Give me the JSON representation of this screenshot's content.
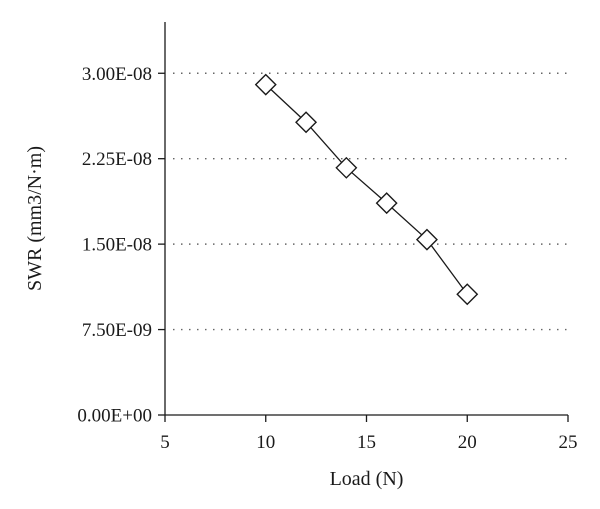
{
  "chart_data": {
    "type": "line",
    "title": "",
    "xlabel": "Load (N)",
    "ylabel": "SWR (mm3/N·m)",
    "xlim": [
      5,
      25
    ],
    "ylim": [
      0,
      3.45e-08
    ],
    "x_ticks": [
      5,
      10,
      15,
      20,
      25
    ],
    "x_tick_labels": [
      "5",
      "10",
      "15",
      "20",
      "25"
    ],
    "y_ticks": [
      0,
      7.5e-09,
      1.5e-08,
      2.25e-08,
      3e-08
    ],
    "y_tick_labels": [
      "0.00E+00",
      "7.50E-09",
      "1.50E-08",
      "2.25E-08",
      "3.00E-08"
    ],
    "grid": "horizontal dotted",
    "marker": "diamond",
    "series": [
      {
        "x": [
          10,
          12,
          14,
          16,
          18,
          20
        ],
        "values": [
          2.9e-08,
          2.57e-08,
          2.17e-08,
          1.86e-08,
          1.54e-08,
          1.06e-08
        ]
      }
    ]
  }
}
